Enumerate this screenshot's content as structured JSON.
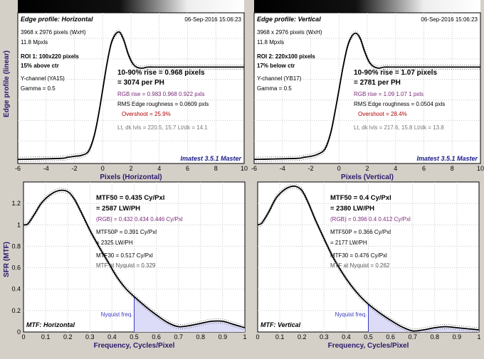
{
  "figure": {
    "y_label_top": "Edge profile (linear)",
    "y_label_bottom": "SFR (MTF)"
  },
  "chart_data": [
    {
      "id": "edge-h",
      "type": "line",
      "title": "Edge profile: Horizontal",
      "date": "06-Sep-2016 15:06:23",
      "xlabel": "Pixels (Horizontal)",
      "ylabel": "Edge profile (linear)",
      "xlim": [
        -6,
        10
      ],
      "xticks": [
        "-6",
        "-4",
        "-2",
        "0",
        "2",
        "4",
        "6",
        "8",
        "10"
      ],
      "grid": true,
      "info_left": [
        "3968 x 2976 pixels (WxH)",
        "11.8 Mpxls"
      ],
      "roi": [
        "ROI 1:  100x220 pixels",
        "15% above ctr"
      ],
      "info_left2": [
        "Y-channel  (YA15)",
        "Gamma = 0.5"
      ],
      "result_main": [
        "10-90% rise = 0.968 pixels",
        "= 3074 per PH"
      ],
      "result_rgb": "RGB rise = 0.983  0.968  0.922 pxls",
      "result_rms": "RMS Edge roughness = 0.0609 pxls",
      "result_overshoot": "Overshoot = 25.9%",
      "result_levels": "Lt, dk lvls = 220.5, 15.7   Lt/dk = 14.1",
      "footer": "Imatest 3.5.1 Master",
      "series": [
        {
          "x": [
            -6,
            -3,
            -2.5,
            -2,
            -1.5,
            -1,
            -0.6,
            -0.3,
            0,
            0.3,
            0.6,
            0.9,
            1.2,
            1.5,
            1.8,
            2.1,
            2.4,
            2.8,
            3.2,
            4,
            6,
            8,
            10
          ],
          "y": [
            0.02,
            0.03,
            0.04,
            0.05,
            0.06,
            0.1,
            0.25,
            0.45,
            0.7,
            0.95,
            1.15,
            1.24,
            1.26,
            1.18,
            1.05,
            0.96,
            0.92,
            0.91,
            0.92,
            0.92,
            0.92,
            0.92,
            0.92
          ]
        }
      ]
    },
    {
      "id": "edge-v",
      "type": "line",
      "title": "Edge profile: Vertical",
      "date": "06-Sep-2016 15:06:23",
      "xlabel": "Pixels (Vertical)",
      "ylabel": "",
      "xlim": [
        -6,
        10
      ],
      "xticks": [
        "-6",
        "-4",
        "-2",
        "0",
        "2",
        "4",
        "6",
        "8",
        "10"
      ],
      "grid": true,
      "info_left": [
        "3968 x 2976 pixels (WxH)",
        "11.8 Mpxls"
      ],
      "roi": [
        "ROI 2:  220x100 pixels",
        "17% below ctr"
      ],
      "info_left2": [
        "Y-channel  (YB17)",
        "Gamma = 0.5"
      ],
      "result_main": [
        "10-90% rise = 1.07 pixels",
        "= 2781 per PH"
      ],
      "result_rgb": "RGB rise = 1.09  1.07  1 pxls",
      "result_rms": "RMS Edge roughness = 0.0504 pxls",
      "result_overshoot": "Overshoot = 28.4%",
      "result_levels": "Lt, dk lvls = 217.6, 15.8   Lt/dk = 13.8",
      "footer": "Imatest 3.5.1 Master",
      "series": [
        {
          "x": [
            -6,
            -3,
            -2.5,
            -2,
            -1.5,
            -1,
            -0.6,
            -0.3,
            0,
            0.3,
            0.6,
            0.9,
            1.2,
            1.5,
            1.8,
            2.1,
            2.4,
            2.8,
            3.2,
            4,
            6,
            8,
            10
          ],
          "y": [
            0.02,
            0.03,
            0.04,
            0.05,
            0.07,
            0.12,
            0.27,
            0.47,
            0.7,
            0.93,
            1.12,
            1.22,
            1.25,
            1.2,
            1.08,
            0.98,
            0.93,
            0.91,
            0.92,
            0.92,
            0.92,
            0.92,
            0.92
          ]
        }
      ]
    },
    {
      "id": "mtf-h",
      "type": "area",
      "title": "MTF: Horizontal",
      "xlabel": "Frequency, Cycles/Pixel",
      "ylabel": "SFR (MTF)",
      "xlim": [
        0,
        1
      ],
      "ylim": [
        0,
        1.4
      ],
      "xticks": [
        "0",
        "0.1",
        "0.2",
        "0.3",
        "0.4",
        "0.5",
        "0.6",
        "0.7",
        "0.8",
        "0.9",
        "1"
      ],
      "yticks": [
        "0",
        "0.2",
        "0.4",
        "0.6",
        "0.8",
        "1",
        "1.2"
      ],
      "grid": true,
      "nyquist": 0.5,
      "nyquist_label": "Nyquist freq.",
      "res_mtf50": "MTF50 = 0.435 Cy/Pxl",
      "res_lw": "= 2587 LW/PH",
      "res_rgb": "(RGB) = 0.432  0.434  0.446 Cy/Pxl",
      "res_mtf50p": "MTF50P = 0.391 Cy/Pxl",
      "res_mtf50p_lw": "= 2325 LW/PH",
      "res_mtf30": "MTF30 = 0.517 Cy/Pxl",
      "res_nyq": "MTF at Nyquist = 0.329",
      "series": [
        {
          "x": [
            0,
            0.02,
            0.05,
            0.08,
            0.12,
            0.16,
            0.2,
            0.23,
            0.26,
            0.3,
            0.34,
            0.38,
            0.42,
            0.46,
            0.5,
            0.55,
            0.6,
            0.65,
            0.7,
            0.75,
            0.8,
            0.85,
            0.9,
            0.95,
            1
          ],
          "y": [
            1.0,
            1.01,
            1.1,
            1.2,
            1.28,
            1.32,
            1.31,
            1.24,
            1.12,
            0.95,
            0.8,
            0.66,
            0.52,
            0.41,
            0.33,
            0.24,
            0.16,
            0.09,
            0.05,
            0.06,
            0.08,
            0.1,
            0.1,
            0.07,
            0.04
          ]
        }
      ]
    },
    {
      "id": "mtf-v",
      "type": "area",
      "title": "MTF: Vertical",
      "xlabel": "Frequency, Cycles/Pixel",
      "ylabel": "",
      "xlim": [
        0,
        1
      ],
      "ylim": [
        0,
        1.4
      ],
      "xticks": [
        "0",
        "0.1",
        "0.2",
        "0.3",
        "0.4",
        "0.5",
        "0.6",
        "0.7",
        "0.8",
        "0.9",
        "1"
      ],
      "yticks": [],
      "grid": true,
      "nyquist": 0.5,
      "nyquist_label": "Nyquist freq.",
      "res_mtf50": "MTF50 = 0.4 Cy/Pxl",
      "res_lw": "= 2380 LW/PH",
      "res_rgb": "(RGB) = 0.396  0.4  0.412 Cy/Pxl",
      "res_mtf50p": "MTF50P = 0.366 Cy/Pxl",
      "res_mtf50p_lw": "= 2177 LW/PH",
      "res_mtf30": "MTF30 = 0.476 Cy/Pxl",
      "res_nyq": "MTF at Nyquist = 0.262",
      "series": [
        {
          "x": [
            0,
            0.02,
            0.05,
            0.08,
            0.11,
            0.14,
            0.17,
            0.2,
            0.23,
            0.26,
            0.3,
            0.34,
            0.38,
            0.42,
            0.46,
            0.5,
            0.55,
            0.6,
            0.65,
            0.7,
            0.75,
            0.8,
            0.85,
            0.9,
            0.95,
            1
          ],
          "y": [
            1.0,
            1.02,
            1.12,
            1.24,
            1.31,
            1.35,
            1.36,
            1.32,
            1.2,
            1.05,
            0.87,
            0.7,
            0.56,
            0.44,
            0.34,
            0.26,
            0.18,
            0.11,
            0.05,
            0.01,
            0.02,
            0.04,
            0.05,
            0.04,
            0.03,
            0.02
          ]
        }
      ]
    }
  ]
}
